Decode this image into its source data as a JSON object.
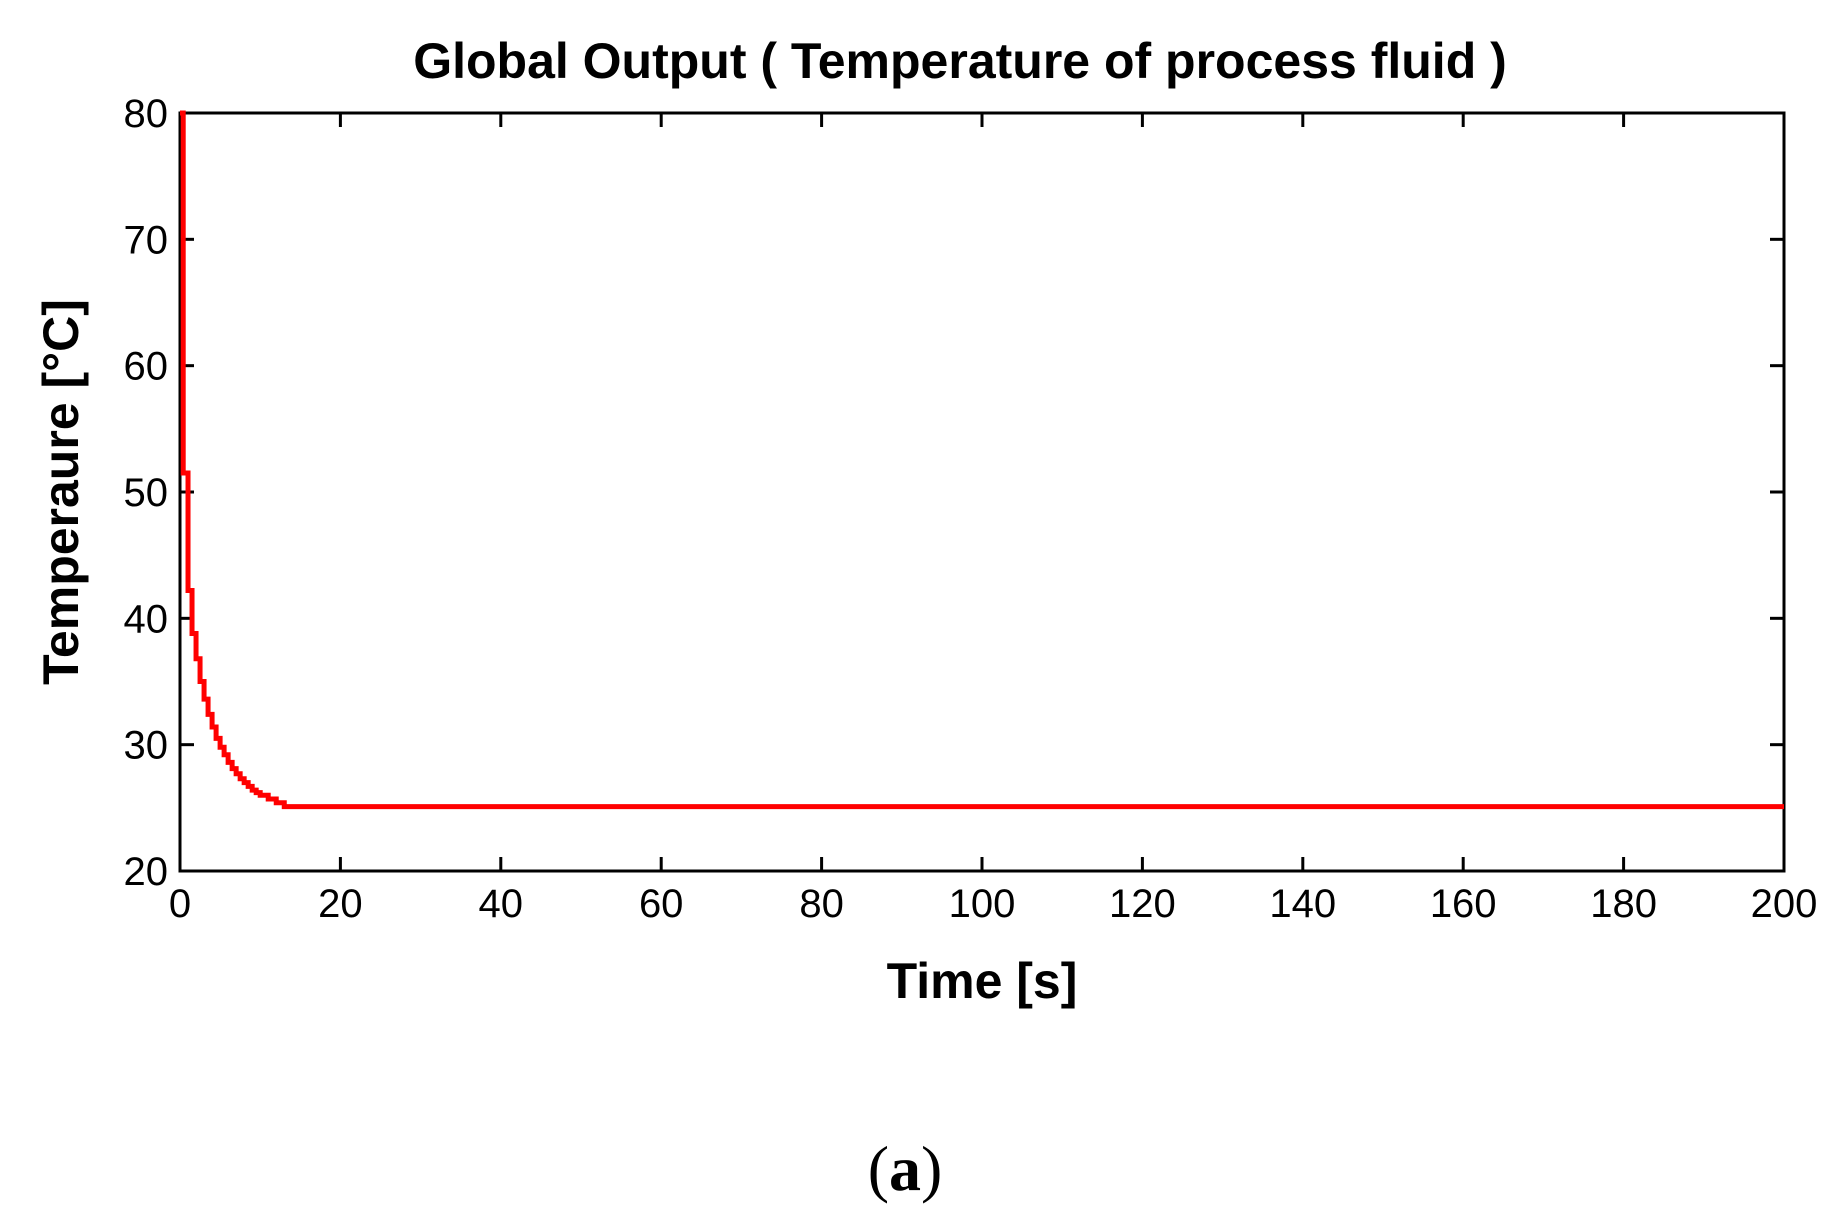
{
  "chart_data": {
    "type": "line",
    "title": "Global Output  ( Temperature of process fluid )",
    "xlabel": "Time [s]",
    "ylabel": "Temperaure [°C]",
    "xlim": [
      0,
      200
    ],
    "ylim": [
      20,
      80
    ],
    "xticks": [
      "0",
      "20",
      "40",
      "60",
      "80",
      "100",
      "120",
      "140",
      "160",
      "180",
      "200"
    ],
    "yticks": [
      "20",
      "30",
      "40",
      "50",
      "60",
      "70",
      "80"
    ],
    "grid": false,
    "legend": "none",
    "series": [
      {
        "color": "#ff0000",
        "step": true,
        "x": [
          0,
          0.4,
          1,
          1.5,
          2,
          2.5,
          3,
          3.5,
          4,
          4.5,
          5,
          5.5,
          6,
          6.5,
          7,
          7.5,
          8,
          8.5,
          9,
          9.5,
          10,
          11,
          12,
          13,
          200
        ],
        "y": [
          80,
          51.5,
          42.2,
          38.8,
          36.8,
          35.0,
          33.6,
          32.4,
          31.4,
          30.5,
          29.8,
          29.2,
          28.6,
          28.1,
          27.7,
          27.3,
          27.0,
          26.7,
          26.4,
          26.2,
          26.0,
          25.7,
          25.4,
          25.1,
          25.1
        ]
      }
    ]
  },
  "caption": {
    "open": "(",
    "letter": "a",
    "close": ")"
  }
}
